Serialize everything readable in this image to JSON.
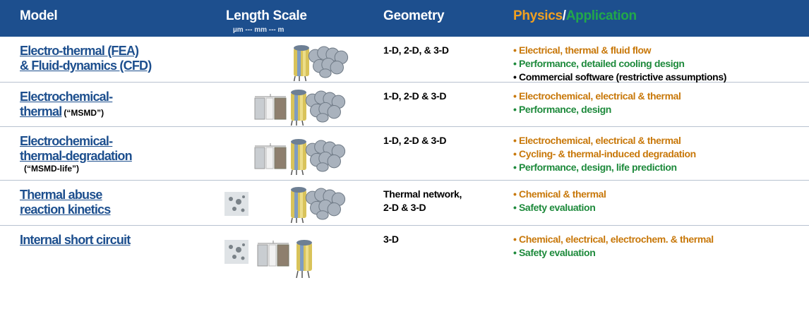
{
  "header": {
    "model": "Model",
    "length_scale": "Length Scale",
    "length_scale_sub": "µm --- mm --- m",
    "geometry": "Geometry",
    "physics": "Physics",
    "slash": "/",
    "application": "Application"
  },
  "rows": [
    {
      "model": [
        {
          "text": "Electro-thermal (FEA)"
        },
        {
          "text": "& Fluid-dynamics (CFD)"
        }
      ],
      "geometry": [
        "1-D, 2-D, & 3-D"
      ],
      "items": [
        {
          "text": "• Electrical, thermal & fluid flow",
          "color": "#c8780a"
        },
        {
          "text": "• Performance, detailed cooling design",
          "color": "#1e8a3c"
        },
        {
          "text": "• Commercial software (restrictive assumptions)",
          "color": "#000000"
        }
      ]
    },
    {
      "model": [
        {
          "text": "Electrochemical-"
        },
        {
          "text": "thermal",
          "note": "(“MSMD”)"
        }
      ],
      "geometry": [
        "1-D, 2-D & 3-D"
      ],
      "items": [
        {
          "text": "• Electrochemical, electrical & thermal",
          "color": "#c8780a"
        },
        {
          "text": "• Performance, design",
          "color": "#1e8a3c"
        }
      ]
    },
    {
      "model": [
        {
          "text": "Electrochemical-"
        },
        {
          "text": "thermal-degradation"
        }
      ],
      "note": "(“MSMD-life”)",
      "geometry": [
        "1-D, 2-D & 3-D"
      ],
      "items": [
        {
          "text": "• Electrochemical, electrical & thermal",
          "color": "#c8780a"
        },
        {
          "text": "• Cycling- & thermal-induced degradation",
          "color": "#c8780a"
        },
        {
          "text": "• Performance, design, life prediction",
          "color": "#1e8a3c"
        }
      ]
    },
    {
      "model": [
        {
          "text": "Thermal abuse"
        },
        {
          "text": "reaction kinetics"
        }
      ],
      "geometry": [
        "Thermal network,",
        "2-D & 3-D"
      ],
      "items": [
        {
          "text": "• Chemical & thermal",
          "color": "#c8780a"
        },
        {
          "text": "• Safety evaluation",
          "color": "#1e8a3c"
        }
      ]
    },
    {
      "model": [
        {
          "text": "Internal short circuit"
        }
      ],
      "geometry": [
        "3-D"
      ],
      "items": [
        {
          "text": "• Chemical, electrical, electrochem. & thermal",
          "color": "#c8780a"
        },
        {
          "text": "• Safety evaluation",
          "color": "#1e8a3c"
        }
      ]
    }
  ]
}
